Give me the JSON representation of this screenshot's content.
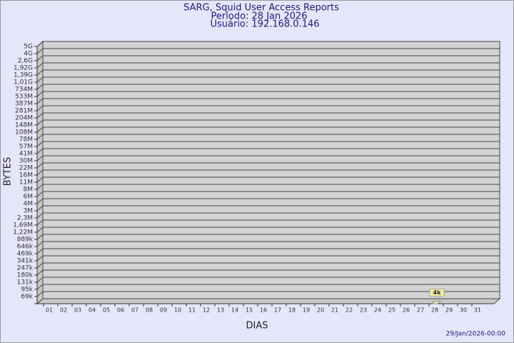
{
  "chart_data": {
    "type": "bar3d",
    "title": "SARG, Squid User Access Reports",
    "subtitle": [
      "Período: 28 Jan 2026",
      "Usuário: 192.168.0.146"
    ],
    "x_label": "DIAS",
    "y_label": "BYTES",
    "timestamp": "29/Jan/2026-00:00",
    "categories": [
      "01",
      "02",
      "03",
      "04",
      "05",
      "06",
      "07",
      "08",
      "09",
      "10",
      "11",
      "12",
      "13",
      "14",
      "15",
      "16",
      "17",
      "18",
      "19",
      "20",
      "21",
      "22",
      "23",
      "24",
      "25",
      "26",
      "27",
      "28",
      "29",
      "30",
      "31"
    ],
    "values": [
      null,
      null,
      null,
      null,
      null,
      null,
      null,
      null,
      null,
      null,
      null,
      null,
      null,
      null,
      null,
      null,
      null,
      null,
      null,
      null,
      null,
      null,
      null,
      null,
      null,
      null,
      null,
      4000,
      null,
      null,
      null
    ],
    "value_labels": [
      null,
      null,
      null,
      null,
      null,
      null,
      null,
      null,
      null,
      null,
      null,
      null,
      null,
      null,
      null,
      null,
      null,
      null,
      null,
      null,
      null,
      null,
      null,
      null,
      null,
      null,
      null,
      "4k",
      null,
      null,
      null
    ],
    "color": "#f5eea0",
    "ylim": [
      0,
      5000000000
    ],
    "yticks": [
      {
        "value": 69000,
        "label": "69k"
      },
      {
        "value": 95000,
        "label": "95k"
      },
      {
        "value": 131000,
        "label": "131k"
      },
      {
        "value": 180000,
        "label": "180k"
      },
      {
        "value": 247000,
        "label": "247k"
      },
      {
        "value": 341000,
        "label": "341k"
      },
      {
        "value": 469000,
        "label": "469k"
      },
      {
        "value": 646000,
        "label": "646k"
      },
      {
        "value": 889000,
        "label": "889k"
      },
      {
        "value": 1220000,
        "label": "1,22M"
      },
      {
        "value": 1690000,
        "label": "1,69M"
      },
      {
        "value": 2300000,
        "label": "2,3M"
      },
      {
        "value": 3000000,
        "label": "3M"
      },
      {
        "value": 4000000,
        "label": "4M"
      },
      {
        "value": 6000000,
        "label": "6M"
      },
      {
        "value": 8000000,
        "label": "8M"
      },
      {
        "value": 11000000,
        "label": "11M"
      },
      {
        "value": 16000000,
        "label": "16M"
      },
      {
        "value": 22000000,
        "label": "22M"
      },
      {
        "value": 30000000,
        "label": "30M"
      },
      {
        "value": 41000000,
        "label": "41M"
      },
      {
        "value": 57000000,
        "label": "57M"
      },
      {
        "value": 78000000,
        "label": "78M"
      },
      {
        "value": 108000000,
        "label": "108M"
      },
      {
        "value": 148000000,
        "label": "148M"
      },
      {
        "value": 204000000,
        "label": "204M"
      },
      {
        "value": 281000000,
        "label": "281M"
      },
      {
        "value": 387000000,
        "label": "387M"
      },
      {
        "value": 533000000,
        "label": "533M"
      },
      {
        "value": 734000000,
        "label": "734M"
      },
      {
        "value": 1010000000,
        "label": "1,01G"
      },
      {
        "value": 1390000000,
        "label": "1,39G"
      },
      {
        "value": 1920000000,
        "label": "1,92G"
      },
      {
        "value": 2600000000,
        "label": "2,6G"
      },
      {
        "value": 4000000000,
        "label": "4G"
      },
      {
        "value": 5000000000,
        "label": "5G"
      }
    ],
    "grid": true
  }
}
